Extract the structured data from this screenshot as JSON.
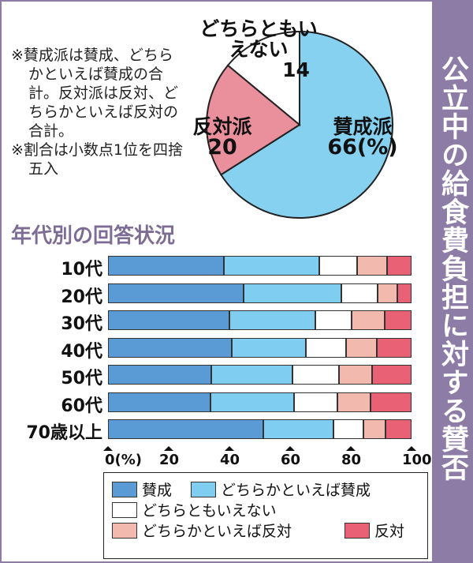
{
  "title": "公立中の給食費負担に対する賛否",
  "notes": [
    "※賛成派は賛成、どちらかといえば賛成の合計。反対派は反対、どちらかといえば反対の合計。",
    "※割合は小数点1位を四捨五入"
  ],
  "chart_data": [
    {
      "type": "pie",
      "title": "",
      "unit": "%",
      "slices": [
        {
          "label": "賛成派",
          "value": 66,
          "value_label": "66(%)",
          "color": "#86d0f0"
        },
        {
          "label": "反対派",
          "value": 20,
          "value_label": "20",
          "color": "#ea8f9c"
        },
        {
          "label": "どちらともいえない",
          "value": 14,
          "value_label": "14",
          "color": "#ffffff"
        }
      ]
    },
    {
      "type": "bar",
      "stacked": true,
      "orientation": "horizontal",
      "title": "年代別の回答状況",
      "xlim": [
        0,
        100
      ],
      "xticks": [
        "0(%)",
        "20",
        "40",
        "60",
        "80",
        "100"
      ],
      "categories": [
        "10代",
        "20代",
        "30代",
        "40代",
        "50代",
        "60代",
        "70歳以上"
      ],
      "series": [
        {
          "name": "賛成",
          "color": "#5b9bd5",
          "values": [
            38.3,
            44.8,
            40.1,
            40.7,
            34.1,
            33.7,
            51.2
          ]
        },
        {
          "name": "どちらかといえば賛成",
          "color": "#7fcdf0",
          "values": [
            31.4,
            32.2,
            28.2,
            24.4,
            26.8,
            27.5,
            23.2
          ]
        },
        {
          "name": "どちらともいえない",
          "color": "#ffffff",
          "values": [
            12.3,
            11.9,
            12.0,
            13.4,
            15.1,
            14.4,
            9.7
          ]
        },
        {
          "name": "どちらかといえば反対",
          "color": "#f2b9ae",
          "values": [
            9.9,
            6.3,
            10.9,
            10.1,
            11.0,
            10.9,
            7.2
          ]
        },
        {
          "name": "反対",
          "color": "#e86174",
          "values": [
            8.1,
            4.8,
            8.8,
            11.4,
            13.0,
            13.5,
            8.7
          ]
        }
      ]
    }
  ]
}
